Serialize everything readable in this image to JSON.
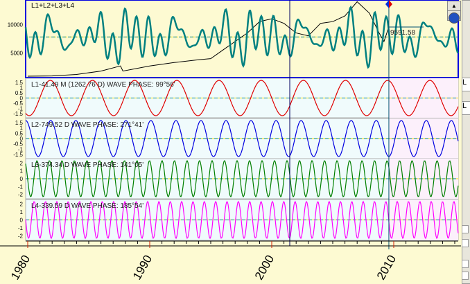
{
  "chart_data": {
    "type": "line",
    "title": "L1+L2+L3+L4",
    "cursor_value": "9591.58",
    "x_range": [
      1980,
      2015.3
    ],
    "x_ticks": [
      "1980",
      "1990",
      "2000",
      "2010"
    ],
    "top_panel": {
      "y_ticks": [
        "10000",
        "5000"
      ],
      "ylim": [
        900,
        14300
      ],
      "mean_line": 7800,
      "price_series": {
        "name": "Price",
        "color": "#000000",
        "points": [
          [
            1980,
            900
          ],
          [
            1982,
            950
          ],
          [
            1984,
            1200
          ],
          [
            1986,
            1800
          ],
          [
            1987.6,
            2700
          ],
          [
            1987.8,
            1800
          ],
          [
            1990,
            2700
          ],
          [
            1992,
            3300
          ],
          [
            1994,
            3800
          ],
          [
            1995,
            4000
          ],
          [
            1996,
            5500
          ],
          [
            1997,
            7000
          ],
          [
            1998,
            8500
          ],
          [
            1999,
            10500
          ],
          [
            2000,
            11000
          ],
          [
            2001,
            10200
          ],
          [
            2002,
            8500
          ],
          [
            2003,
            8000
          ],
          [
            2004,
            10200
          ],
          [
            2005,
            10500
          ],
          [
            2006,
            11500
          ],
          [
            2007,
            14000
          ],
          [
            2008,
            12000
          ],
          [
            2008.8,
            8500
          ],
          [
            2009.2,
            7000
          ],
          [
            2009.6,
            9591
          ]
        ]
      }
    },
    "series": [
      {
        "name": "L1",
        "label": "L1-41.49 M (1262.76 D) WAVE PHASE: 99°56'",
        "period_days": 1262.76,
        "phase_deg": 99.56,
        "amplitude": 1.7,
        "color": "#e00000",
        "y_ticks": [
          "1.5",
          "1",
          "0.5",
          "0",
          "-0.5",
          "-1",
          "-1.5"
        ]
      },
      {
        "name": "L2",
        "label": "L2-749.52 D WAVE PHASE: 271°41'",
        "period_days": 749.52,
        "phase_deg": 271.41,
        "amplitude": 1.7,
        "color": "#0000e0",
        "y_ticks": [
          "1.5",
          "1",
          "0.5",
          "0",
          "-0.5",
          "-1",
          "-1.5"
        ]
      },
      {
        "name": "L3",
        "label": "L3-374.34 D WAVE PHASE: 141°05'",
        "period_days": 374.34,
        "phase_deg": 141.05,
        "amplitude": 2.3,
        "color": "#008000",
        "y_ticks": [
          "2",
          "1",
          "0",
          "-1",
          "-2"
        ]
      },
      {
        "name": "L4",
        "label": "L4-339.59 D WAVE PHASE: 185°54'",
        "period_days": 339.59,
        "phase_deg": 185.54,
        "amplitude": 2.3,
        "color": "#ff00ff",
        "y_ticks": [
          "2",
          "1",
          "0",
          "-1",
          "-2"
        ]
      }
    ],
    "composite_color": "#008080"
  },
  "controls": {
    "up": "▲",
    "down": "▼",
    "side_labels": [
      "L",
      "L"
    ]
  }
}
